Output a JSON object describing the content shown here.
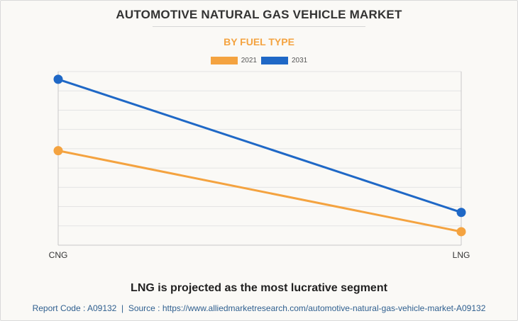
{
  "header": {
    "title": "AUTOMOTIVE NATURAL GAS VEHICLE MARKET",
    "subtitle": "BY FUEL TYPE"
  },
  "caption": "LNG is projected as the most lucrative segment",
  "footer": {
    "report_code": "Report Code : A09132",
    "separator": "|",
    "source": "Source : https://www.alliedmarketresearch.com/automotive-natural-gas-vehicle-market-A09132"
  },
  "colors": {
    "series_2021": "#f4a340",
    "series_2031": "#1f68c6",
    "grid": "#e4e4e4",
    "axis": "#c8c8c8"
  },
  "chart_data": {
    "type": "line",
    "title": "AUTOMOTIVE NATURAL GAS VEHICLE MARKET",
    "subtitle": "BY FUEL TYPE",
    "categories": [
      "CNG",
      "LNG"
    ],
    "series": [
      {
        "name": "2021",
        "values": [
          4.9,
          0.7
        ]
      },
      {
        "name": "2031",
        "values": [
          8.6,
          1.7
        ]
      }
    ],
    "ylim": [
      0,
      9
    ],
    "y_gridlines": 9,
    "xlabel": "",
    "ylabel": "",
    "legend_position": "top-center",
    "grid": true
  }
}
